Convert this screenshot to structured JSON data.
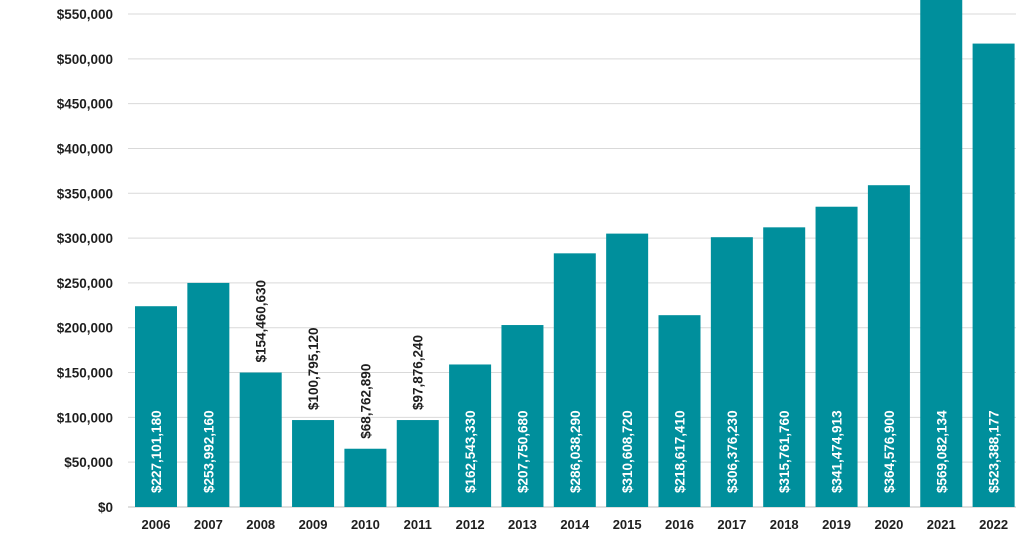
{
  "chart_data": {
    "type": "bar",
    "title": "",
    "xlabel": "",
    "ylabel": "",
    "ylim": [
      0,
      570000
    ],
    "yticks": [
      0,
      50000,
      100000,
      150000,
      200000,
      250000,
      300000,
      350000,
      400000,
      450000,
      500000,
      550000
    ],
    "ytick_labels": [
      "$0",
      "$50,000",
      "$100,000",
      "$150,000",
      "$200,000",
      "$250,000",
      "$300,000",
      "$350,000",
      "$400,000",
      "$450,000",
      "$500,000",
      "$550,000"
    ],
    "grid": true,
    "legend": "none",
    "bar_color": "#008f9c",
    "categories": [
      "2006",
      "2007",
      "2008",
      "2009",
      "2010",
      "2011",
      "2012",
      "2013",
      "2014",
      "2015",
      "2016",
      "2017",
      "2018",
      "2019",
      "2020",
      "2021",
      "2022"
    ],
    "values": [
      227101180,
      253992160,
      154460630,
      100795120,
      68762890,
      97876240,
      162543330,
      207750680,
      286038290,
      310608720,
      218617410,
      306376230,
      315761760,
      341474913,
      364576900,
      569082134,
      523388177
    ],
    "data_labels": [
      "$227,101,180",
      "$253,992,160",
      "$154,460,630",
      "$100,795,120",
      "$68,762,890",
      "$97,876,240",
      "$162,543,330",
      "$207,750,680",
      "$286,038,290",
      "$310,608,720",
      "$218,617,410",
      "$306,376,230",
      "$315,761,760",
      "$341,474,913",
      "$364,576,900",
      "$569,082,134",
      "$523,388,177"
    ],
    "bar_heights_shown": [
      224000,
      250000,
      150000,
      97000,
      65000,
      97000,
      159000,
      203000,
      283000,
      305000,
      214000,
      301000,
      312000,
      335000,
      359000,
      572000,
      517000
    ]
  }
}
